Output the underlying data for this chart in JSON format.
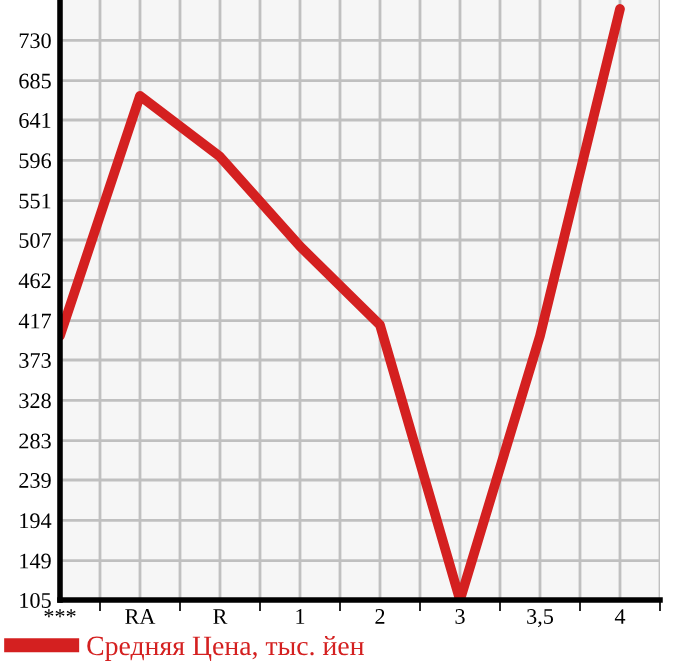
{
  "chart_data": {
    "type": "line",
    "categories": [
      "***",
      "RA",
      "R",
      "1",
      "2",
      "3",
      "3,5",
      "4"
    ],
    "series": [
      {
        "name": "Средняя Цена, тыс. йен",
        "color": "#d42020",
        "values": [
          400,
          668,
          600,
          500,
          412,
          105,
          400,
          765
        ]
      }
    ],
    "ylim": [
      105,
      775
    ],
    "yticks": [
      105,
      149,
      194,
      239,
      283,
      328,
      373,
      417,
      462,
      507,
      551,
      596,
      641,
      685,
      730
    ],
    "grid": true,
    "legend": "bottom",
    "marker": "none",
    "line_style": "solid"
  }
}
